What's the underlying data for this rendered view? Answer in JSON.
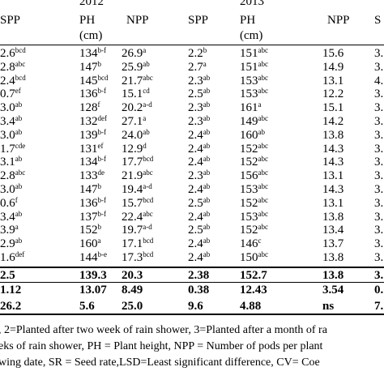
{
  "header": {
    "year_2012": "2012",
    "year_2013": "2013",
    "columns": [
      "SPP",
      "PH",
      "NPP",
      "SPP",
      "PH",
      "NPP",
      "S"
    ],
    "unit_2012": "(cm)",
    "unit_2013": "(cm)"
  },
  "table": {
    "rows": [
      [
        {
          "v": "2.6",
          "sup": "bcd"
        },
        {
          "v": "134",
          "sup": "b-f"
        },
        {
          "v": "26.9",
          "sup": "a"
        },
        {
          "v": "2.2",
          "sup": "b"
        },
        {
          "v": "151",
          "sup": "abc"
        },
        {
          "v": "15.6"
        },
        {
          "v": "3."
        }
      ],
      [
        {
          "v": "2.8",
          "sup": "abc"
        },
        {
          "v": "147",
          "sup": "b"
        },
        {
          "v": "25.9",
          "sup": "ab"
        },
        {
          "v": "2.7",
          "sup": "a"
        },
        {
          "v": "151",
          "sup": "abc"
        },
        {
          "v": "14.9"
        },
        {
          "v": "3."
        }
      ],
      [
        {
          "v": "2.4",
          "sup": "bcd"
        },
        {
          "v": "145",
          "sup": "bcd"
        },
        {
          "v": "21.7",
          "sup": "abc"
        },
        {
          "v": "2.3",
          "sup": "ab"
        },
        {
          "v": "153",
          "sup": "abc"
        },
        {
          "v": "13.1"
        },
        {
          "v": "4."
        }
      ],
      [
        {
          "v": "0.7",
          "sup": "ef"
        },
        {
          "v": "136",
          "sup": "b-f"
        },
        {
          "v": "15.1",
          "sup": "cd"
        },
        {
          "v": "2.5",
          "sup": "ab"
        },
        {
          "v": "153",
          "sup": "abc"
        },
        {
          "v": "12.2"
        },
        {
          "v": "3."
        }
      ],
      [
        {
          "v": "3.0",
          "sup": "ab"
        },
        {
          "v": "128",
          "sup": "f"
        },
        {
          "v": "20.2",
          "sup": "a-d"
        },
        {
          "v": "2.3",
          "sup": "ab"
        },
        {
          "v": "161",
          "sup": "a"
        },
        {
          "v": "15.1"
        },
        {
          "v": "3."
        }
      ],
      [
        {
          "v": "3.4",
          "sup": "ab"
        },
        {
          "v": "132",
          "sup": "def"
        },
        {
          "v": "27.1",
          "sup": "a"
        },
        {
          "v": "2.3",
          "sup": "ab"
        },
        {
          "v": "149",
          "sup": "abc"
        },
        {
          "v": "14.2"
        },
        {
          "v": "3."
        }
      ],
      [
        {
          "v": "3.0",
          "sup": "ab"
        },
        {
          "v": "139",
          "sup": "b-f"
        },
        {
          "v": "24.0",
          "sup": "ab"
        },
        {
          "v": "2.4",
          "sup": "ab"
        },
        {
          "v": "160",
          "sup": "ab"
        },
        {
          "v": "13.8"
        },
        {
          "v": "3."
        }
      ],
      [
        {
          "v": "1.7",
          "sup": "cde"
        },
        {
          "v": "131",
          "sup": "ef"
        },
        {
          "v": "12.9",
          "sup": "d"
        },
        {
          "v": "2.4",
          "sup": "ab"
        },
        {
          "v": "152",
          "sup": "abc"
        },
        {
          "v": "14.3"
        },
        {
          "v": "3."
        }
      ],
      [
        {
          "v": "3.1",
          "sup": "ab"
        },
        {
          "v": "134",
          "sup": "b-f"
        },
        {
          "v": "17.7",
          "sup": "bcd"
        },
        {
          "v": "2.4",
          "sup": "ab"
        },
        {
          "v": "152",
          "sup": "abc"
        },
        {
          "v": "14.3"
        },
        {
          "v": "3."
        }
      ],
      [
        {
          "v": "2.8",
          "sup": "abc"
        },
        {
          "v": "133",
          "sup": "de"
        },
        {
          "v": "21.9",
          "sup": "abc"
        },
        {
          "v": "2.3",
          "sup": "ab"
        },
        {
          "v": "156",
          "sup": "abc"
        },
        {
          "v": "13.1"
        },
        {
          "v": "3."
        }
      ],
      [
        {
          "v": "3.0",
          "sup": "ab"
        },
        {
          "v": "147",
          "sup": "b"
        },
        {
          "v": "19.4",
          "sup": "a-d"
        },
        {
          "v": "2.4",
          "sup": "ab"
        },
        {
          "v": "153",
          "sup": "abc"
        },
        {
          "v": "14.3"
        },
        {
          "v": "3."
        }
      ],
      [
        {
          "v": "0.6",
          "sup": "f"
        },
        {
          "v": "136",
          "sup": "b-f"
        },
        {
          "v": "15.7",
          "sup": "bcd"
        },
        {
          "v": "2.5",
          "sup": "ab"
        },
        {
          "v": "152",
          "sup": "abc"
        },
        {
          "v": "13.1"
        },
        {
          "v": "3."
        }
      ],
      [
        {
          "v": "3.4",
          "sup": "ab"
        },
        {
          "v": "137",
          "sup": "b-f"
        },
        {
          "v": "22.4",
          "sup": "abc"
        },
        {
          "v": "2.4",
          "sup": "ab"
        },
        {
          "v": "153",
          "sup": "abc"
        },
        {
          "v": "13.8"
        },
        {
          "v": "3."
        }
      ],
      [
        {
          "v": "3.9",
          "sup": "a"
        },
        {
          "v": "152",
          "sup": "b"
        },
        {
          "v": "19.7",
          "sup": "a-d"
        },
        {
          "v": "2.5",
          "sup": "ab"
        },
        {
          "v": "152",
          "sup": "abc"
        },
        {
          "v": "13.4"
        },
        {
          "v": "3."
        }
      ],
      [
        {
          "v": "2.9",
          "sup": "ab"
        },
        {
          "v": "160",
          "sup": "a"
        },
        {
          "v": "17.1",
          "sup": "bcd"
        },
        {
          "v": "2.4",
          "sup": "ab"
        },
        {
          "v": "146",
          "sup": "c"
        },
        {
          "v": "13.7"
        },
        {
          "v": "3."
        }
      ],
      [
        {
          "v": "1.6",
          "sup": "def"
        },
        {
          "v": "144",
          "sup": "b-e"
        },
        {
          "v": "17.3",
          "sup": "bcd"
        },
        {
          "v": "2.4",
          "sup": "ab"
        },
        {
          "v": "150",
          "sup": "abc"
        },
        {
          "v": "13.8"
        },
        {
          "v": "3."
        }
      ]
    ],
    "summary": [
      [
        {
          "v": "2.5"
        },
        {
          "v": "139.3"
        },
        {
          "v": "20.3"
        },
        {
          "v": "2.38"
        },
        {
          "v": "152.7"
        },
        {
          "v": "13.8"
        },
        {
          "v": "3."
        }
      ],
      [
        {
          "v": "1.12"
        },
        {
          "v": "13.07"
        },
        {
          "v": "8.49"
        },
        {
          "v": "0.38"
        },
        {
          "v": "12.43"
        },
        {
          "v": "3.54"
        },
        {
          "v": "0."
        }
      ],
      [
        {
          "v": "26.2"
        },
        {
          "v": "5.6"
        },
        {
          "v": "25.0"
        },
        {
          "v": "9.6"
        },
        {
          "v": "4.88"
        },
        {
          "v": "ns"
        },
        {
          "v": "7."
        }
      ]
    ]
  },
  "footnotes": [
    ", 2=Planted after two week of rain shower, 3=Planted after a month of ra",
    "eks of rain shower, PH = Plant height, NPP = Number of pods per plant",
    "wing date, SR = Seed rate,LSD=Least significant difference, CV= Coe"
  ]
}
